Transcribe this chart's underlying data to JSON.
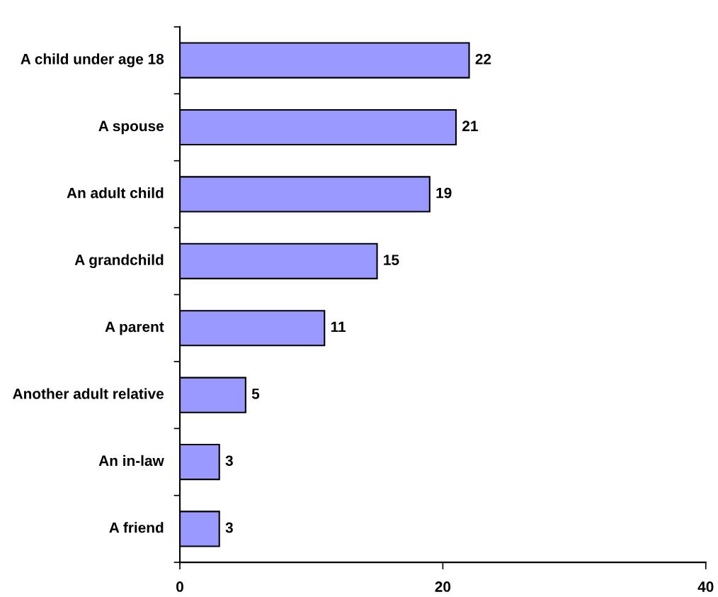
{
  "chart_data": {
    "type": "bar",
    "orientation": "horizontal",
    "categories": [
      "A child under age 18",
      "A spouse",
      "An adult child",
      "A grandchild",
      "A parent",
      "Another adult relative",
      "An in-law",
      "A friend"
    ],
    "values": [
      22,
      21,
      19,
      15,
      11,
      5,
      3,
      3
    ],
    "color": "#9999ff",
    "xlim": [
      0,
      40
    ],
    "xticks": [
      0,
      20,
      40
    ],
    "data_labels": true,
    "grid": false,
    "legend": false
  }
}
